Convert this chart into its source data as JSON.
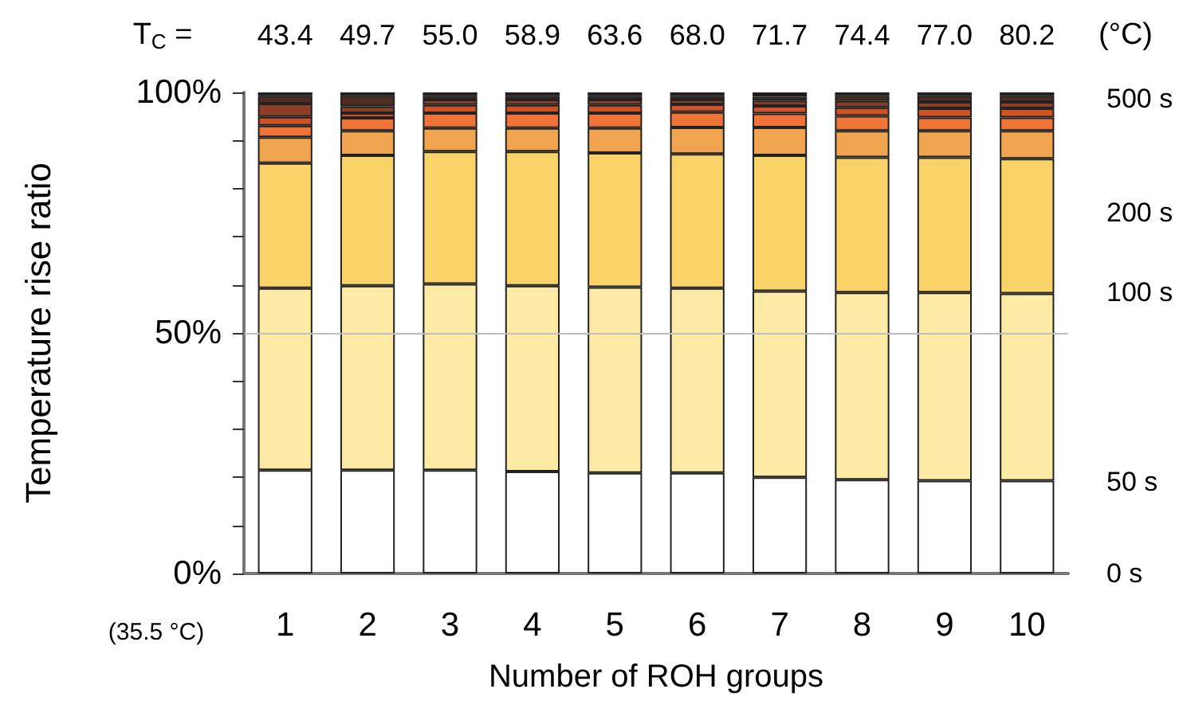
{
  "chart_data": {
    "type": "bar",
    "stacked": true,
    "ylabel": "Temperature rise ratio",
    "xlabel": "Number of ROH groups",
    "categories": [
      "1",
      "2",
      "3",
      "4",
      "5",
      "6",
      "7",
      "8",
      "9",
      "10"
    ],
    "series": [
      {
        "color": "#ffffff",
        "values": [
          21.5,
          21.5,
          21.5,
          21.2,
          20.9,
          20.9,
          20.0,
          19.5,
          19.3,
          19.3
        ]
      },
      {
        "color": "#fdeba5",
        "values": [
          37.8,
          38.3,
          38.7,
          38.6,
          38.6,
          38.4,
          38.7,
          38.9,
          39.1,
          38.9
        ]
      },
      {
        "color": "#f9d367",
        "values": [
          26.0,
          27.1,
          27.5,
          27.9,
          27.9,
          27.9,
          28.2,
          28.1,
          28.1,
          28.0
        ]
      },
      {
        "color": "#f1a44f",
        "values": [
          5.4,
          5.1,
          4.9,
          4.9,
          5.2,
          5.5,
          5.8,
          5.5,
          5.5,
          5.8
        ]
      },
      {
        "color": "#ee7537",
        "values": [
          2.4,
          2.7,
          3.1,
          3.1,
          3.1,
          3.2,
          2.9,
          3.1,
          2.8,
          2.8
        ]
      },
      {
        "color": "#cf5226",
        "values": [
          1.8,
          1.0,
          1.7,
          1.7,
          1.7,
          1.6,
          1.6,
          1.8,
          1.9,
          1.9
        ]
      },
      {
        "color": "#8a3f26",
        "values": [
          2.8,
          1.4,
          1.1,
          1.1,
          1.1,
          1.0,
          1.1,
          1.3,
          1.3,
          1.3
        ]
      },
      {
        "color": "#4e2e22",
        "values": [
          1.6,
          2.2,
          0.8,
          0.8,
          0.8,
          0.8,
          0.8,
          1.1,
          1.3,
          1.3
        ]
      },
      {
        "color": "#1a1410",
        "values": [
          0.7,
          0.7,
          0.7,
          0.7,
          0.7,
          0.7,
          0.9,
          0.7,
          0.7,
          0.7
        ]
      }
    ],
    "ylim": [
      0,
      100
    ],
    "yticks": [
      {
        "value": 0,
        "label": "0%"
      },
      {
        "value": 10,
        "label": null
      },
      {
        "value": 20,
        "label": null
      },
      {
        "value": 30,
        "label": null
      },
      {
        "value": 40,
        "label": null
      },
      {
        "value": 50,
        "label": "50%"
      },
      {
        "value": 60,
        "label": null
      },
      {
        "value": 70,
        "label": null
      },
      {
        "value": 80,
        "label": null
      },
      {
        "value": 90,
        "label": null
      },
      {
        "value": 100,
        "label": "100%"
      }
    ],
    "ref_lines": [
      {
        "axis": "y",
        "value": 50,
        "color": "#bfbfbf"
      }
    ],
    "annotations": [
      "T$_{C}$ =",
      "43.4",
      "49.7",
      "55.0",
      "58.9",
      "63.6",
      "68.0",
      "71.7",
      "74.4",
      "77.0",
      "80.2",
      "(°C)",
      "(35.5 °C)",
      "0 s",
      "50 s",
      "100 s",
      "200 s",
      "500 s"
    ]
  }
}
